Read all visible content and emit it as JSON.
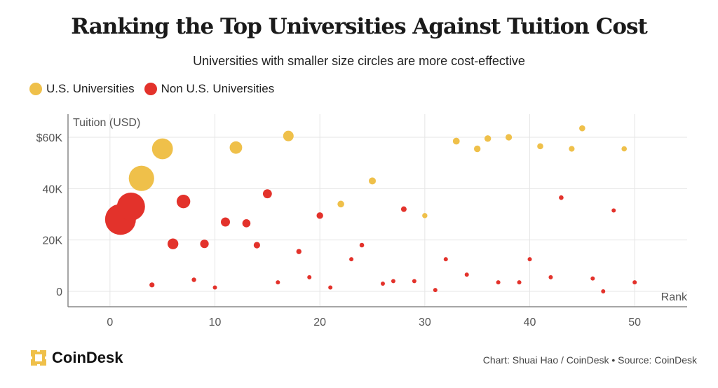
{
  "header": {
    "title": "Ranking the Top Universities Against Tuition Cost",
    "subtitle": "Universities with smaller size circles are more cost-effective"
  },
  "legend": [
    {
      "label": "U.S. Universities",
      "color": "#EFC04A"
    },
    {
      "label": "Non U.S. Universities",
      "color": "#E3322B"
    }
  ],
  "footer": {
    "logo_text": "CoinDesk",
    "credit": "Chart: Shuai Hao / CoinDesk • Source: CoinDesk"
  },
  "chart_data": {
    "type": "scatter",
    "ylabel": "Tuition (USD)",
    "xlabel": "Rank",
    "xlim": [
      -4,
      55
    ],
    "ylim": [
      -6000,
      69000
    ],
    "x_ticks": [
      0,
      10,
      20,
      30,
      40,
      50
    ],
    "x_tick_labels": [
      "0",
      "10",
      "20",
      "30",
      "40",
      "50"
    ],
    "y_ticks": [
      0,
      20000,
      40000,
      60000
    ],
    "y_tick_labels": [
      "0",
      "20K",
      "40K",
      "$60K"
    ],
    "grid": true,
    "colors": {
      "us": "#EFC04A",
      "non_us": "#E3322B",
      "grid": "#E6E6E6",
      "axis": "#888888"
    },
    "series": [
      {
        "name": "U.S. Universities",
        "color": "#EFC04A",
        "points": [
          {
            "rank": 3,
            "tuition": 44000
          },
          {
            "rank": 5,
            "tuition": 55500
          },
          {
            "rank": 12,
            "tuition": 56000
          },
          {
            "rank": 17,
            "tuition": 60500
          },
          {
            "rank": 22,
            "tuition": 34000
          },
          {
            "rank": 25,
            "tuition": 43000
          },
          {
            "rank": 30,
            "tuition": 29500
          },
          {
            "rank": 33,
            "tuition": 58500
          },
          {
            "rank": 35,
            "tuition": 55500
          },
          {
            "rank": 36,
            "tuition": 59500
          },
          {
            "rank": 38,
            "tuition": 60000
          },
          {
            "rank": 41,
            "tuition": 56500
          },
          {
            "rank": 44,
            "tuition": 55500
          },
          {
            "rank": 45,
            "tuition": 63500
          },
          {
            "rank": 49,
            "tuition": 55500
          }
        ]
      },
      {
        "name": "Non U.S. Universities",
        "color": "#E3322B",
        "points": [
          {
            "rank": 1,
            "tuition": 28000
          },
          {
            "rank": 2,
            "tuition": 33000
          },
          {
            "rank": 4,
            "tuition": 2500
          },
          {
            "rank": 6,
            "tuition": 18500
          },
          {
            "rank": 7,
            "tuition": 35000
          },
          {
            "rank": 8,
            "tuition": 4500
          },
          {
            "rank": 9,
            "tuition": 18500
          },
          {
            "rank": 10,
            "tuition": 1500
          },
          {
            "rank": 11,
            "tuition": 27000
          },
          {
            "rank": 13,
            "tuition": 26500
          },
          {
            "rank": 14,
            "tuition": 18000
          },
          {
            "rank": 15,
            "tuition": 38000
          },
          {
            "rank": 16,
            "tuition": 3500
          },
          {
            "rank": 18,
            "tuition": 15500
          },
          {
            "rank": 19,
            "tuition": 5500
          },
          {
            "rank": 20,
            "tuition": 29500
          },
          {
            "rank": 21,
            "tuition": 1500
          },
          {
            "rank": 23,
            "tuition": 12500
          },
          {
            "rank": 24,
            "tuition": 18000
          },
          {
            "rank": 26,
            "tuition": 3000
          },
          {
            "rank": 27,
            "tuition": 4000
          },
          {
            "rank": 28,
            "tuition": 32000
          },
          {
            "rank": 29,
            "tuition": 4000
          },
          {
            "rank": 31,
            "tuition": 500
          },
          {
            "rank": 32,
            "tuition": 12500
          },
          {
            "rank": 34,
            "tuition": 6500
          },
          {
            "rank": 37,
            "tuition": 3500
          },
          {
            "rank": 39,
            "tuition": 3500
          },
          {
            "rank": 40,
            "tuition": 12500
          },
          {
            "rank": 42,
            "tuition": 5500
          },
          {
            "rank": 43,
            "tuition": 36500
          },
          {
            "rank": 46,
            "tuition": 5000
          },
          {
            "rank": 47,
            "tuition": 0
          },
          {
            "rank": 48,
            "tuition": 31500
          },
          {
            "rank": 50,
            "tuition": 3500
          }
        ]
      }
    ]
  }
}
